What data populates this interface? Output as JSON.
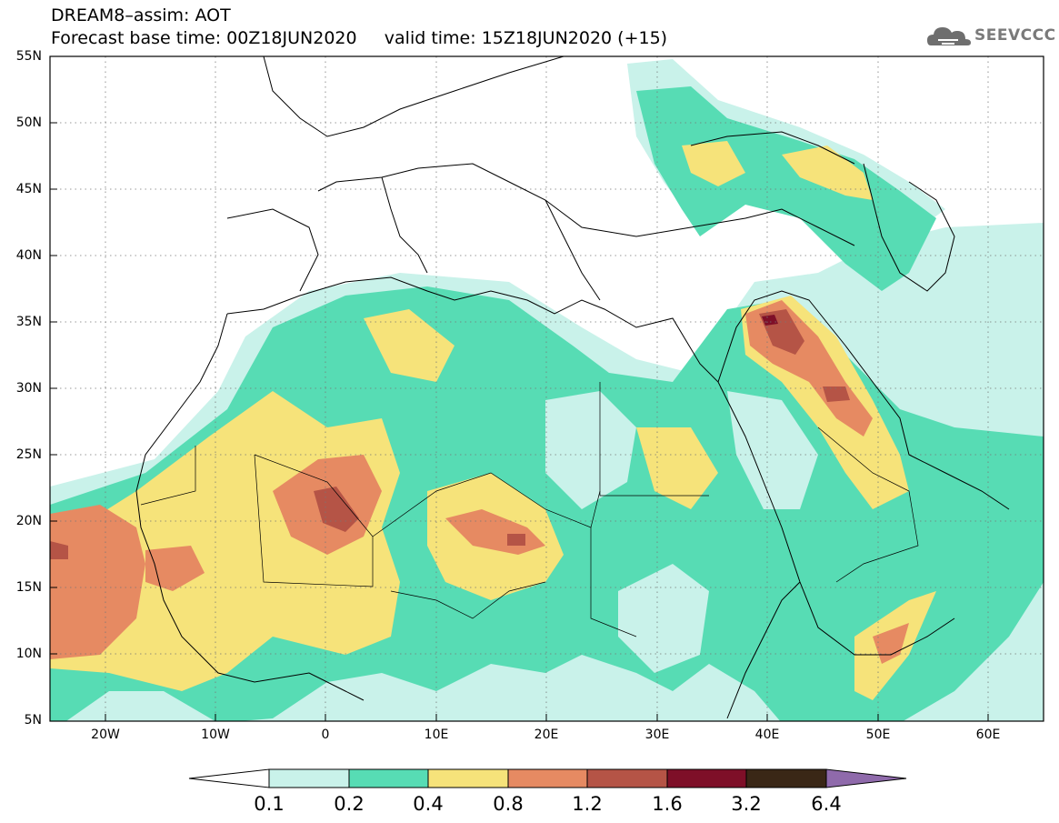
{
  "title_line1": "DREAM8–assim: AOT",
  "title_line2": "Forecast base time: 00Z18JUN2020     valid time: 15Z18JUN2020 (+15)",
  "logo": {
    "text": "SEEVCCC",
    "icon": "cloud-logo-icon"
  },
  "map": {
    "lon_range": [
      -25,
      65
    ],
    "lat_range": [
      5,
      55
    ],
    "lat_labels": [
      "55N",
      "50N",
      "45N",
      "40N",
      "35N",
      "30N",
      "25N",
      "20N",
      "15N",
      "10N",
      "5N"
    ],
    "lon_labels": [
      "20W",
      "10W",
      "0",
      "10E",
      "20E",
      "30E",
      "40E",
      "50E",
      "60E"
    ],
    "grid": true
  },
  "colorbar": {
    "labels": [
      "0.1",
      "0.2",
      "0.4",
      "0.8",
      "1.2",
      "1.6",
      "3.2",
      "6.4"
    ],
    "colors": [
      "#c9f2ea",
      "#57dcb4",
      "#f6e37a",
      "#e68a62",
      "#b55446",
      "#7e0f28",
      "#3a2716",
      "#8f6aab"
    ]
  },
  "colors": {
    "aot_0_1": "#c9f2ea",
    "aot_0_2": "#57dcb4",
    "aot_0_4": "#f6e37a",
    "aot_0_8": "#e68a62",
    "aot_1_2": "#b55446",
    "aot_1_6": "#7e0f28"
  }
}
